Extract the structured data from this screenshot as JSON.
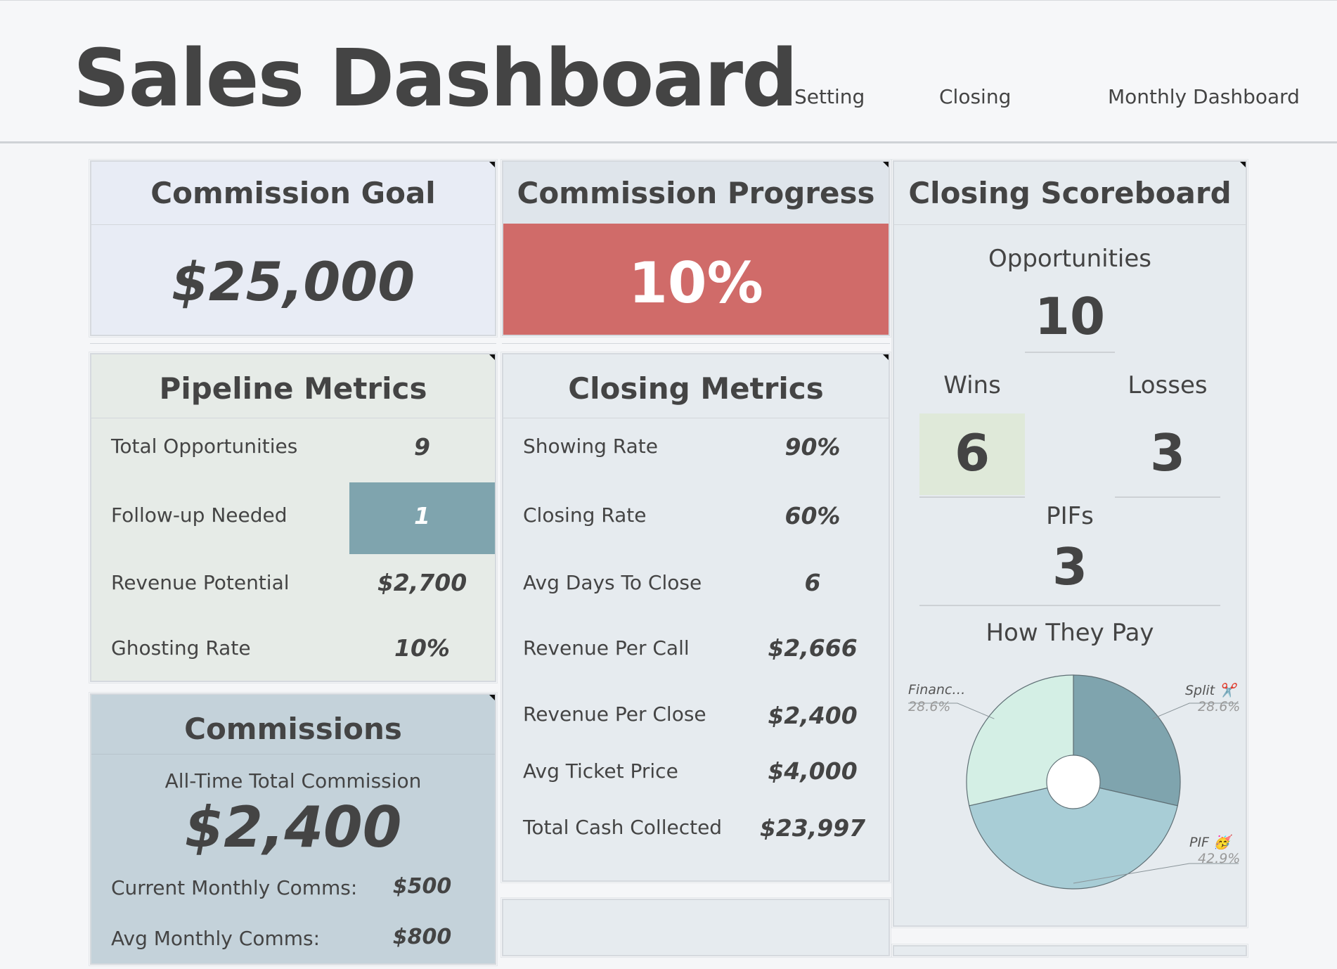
{
  "header": {
    "title": "Sales Dashboard",
    "nav": {
      "setting": "Setting",
      "closing": "Closing",
      "monthly": "Monthly Dashboard"
    }
  },
  "commission_goal": {
    "title": "Commission Goal",
    "value": "$25,000"
  },
  "commission_progress": {
    "title": "Commission Progress",
    "value": "10%",
    "fraction": 0.1,
    "color": "#d06b69"
  },
  "pipeline": {
    "title": "Pipeline Metrics",
    "rows": [
      {
        "label": "Total Opportunities",
        "value": "9"
      },
      {
        "label": "Follow-up Needed",
        "value": "1"
      },
      {
        "label": "Revenue Potential",
        "value": "$2,700"
      },
      {
        "label": "Ghosting Rate",
        "value": "10%"
      }
    ],
    "highlight_color": "#7fa4ae"
  },
  "commissions": {
    "title": "Commissions",
    "alltime_label": "All-Time Total Commission",
    "alltime_value": "$2,400",
    "current_label": "Current Monthly Comms:",
    "current_value": "$500",
    "avg_label": "Avg Monthly Comms:",
    "avg_value": "$800"
  },
  "closing_metrics": {
    "title": "Closing Metrics",
    "rows": [
      {
        "label": "Showing Rate",
        "value": "90%"
      },
      {
        "label": "Closing Rate",
        "value": "60%"
      },
      {
        "label": "Avg Days To Close",
        "value": "6"
      },
      {
        "label": "Revenue Per Call",
        "value": "$2,666"
      },
      {
        "label": "Revenue Per Close",
        "value": "$2,400"
      },
      {
        "label": "Avg Ticket Price",
        "value": "$4,000"
      },
      {
        "label": "Total Cash Collected",
        "value": "$23,997"
      }
    ]
  },
  "scoreboard": {
    "title": "Closing Scoreboard",
    "opportunities_label": "Opportunities",
    "opportunities_value": "10",
    "wins_label": "Wins",
    "wins_value": "6",
    "losses_label": "Losses",
    "losses_value": "3",
    "pifs_label": "PIFs",
    "pifs_value": "3",
    "pie_title": "How They Pay"
  },
  "chart_data": {
    "type": "pie",
    "title": "How They Pay",
    "slices": [
      {
        "label": "Split ✂️",
        "value": 28.6,
        "pct_label": "28.6%",
        "color": "#7fa4ae"
      },
      {
        "label": "PIF 🥳",
        "value": 42.9,
        "pct_label": "42.9%",
        "color": "#a8cdd6"
      },
      {
        "label": "Financ…",
        "value": 28.6,
        "pct_label": "28.6%",
        "color": "#d4efe5"
      }
    ]
  }
}
